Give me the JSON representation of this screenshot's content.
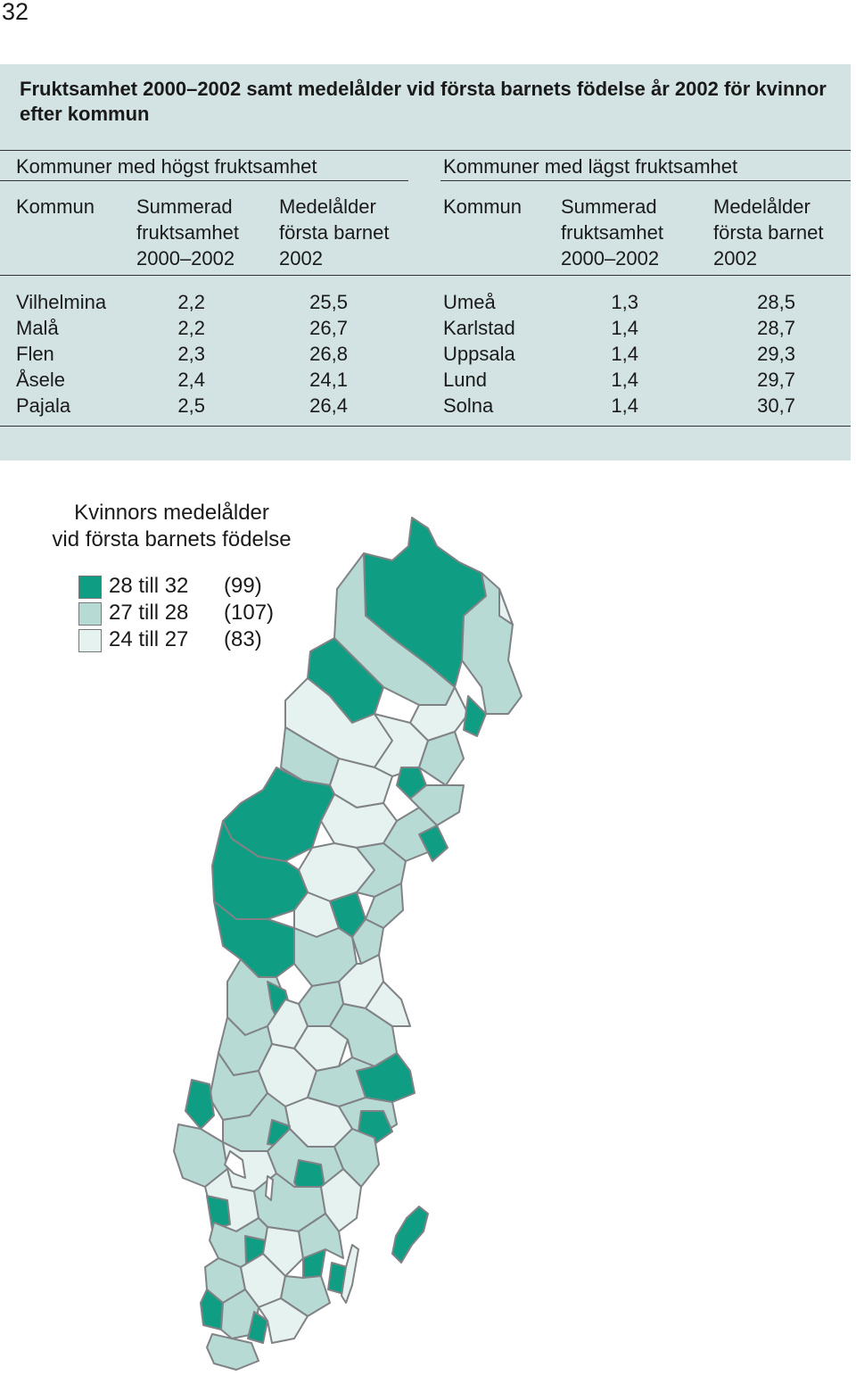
{
  "page_number": "32",
  "box": {
    "title": "Fruktsamhet 2000–2002 samt medelålder vid första barnets födelse år 2002 för kvinnor efter kommun",
    "left_heading": "Kommuner med högst fruktsamhet",
    "right_heading": "Kommuner med lägst fruktsamhet",
    "columns": {
      "kommun": "Kommun",
      "fruktsamhet": [
        "Summerad",
        "fruktsamhet",
        "2000–2002"
      ],
      "medelalder": [
        "Medelålder",
        "första barnet",
        "2002"
      ]
    },
    "highest": [
      {
        "kommun": "Vilhelmina",
        "fruktsamhet": "2,2",
        "medelalder": "25,5"
      },
      {
        "kommun": "Malå",
        "fruktsamhet": "2,2",
        "medelalder": "26,7"
      },
      {
        "kommun": "Flen",
        "fruktsamhet": "2,3",
        "medelalder": "26,8"
      },
      {
        "kommun": "Åsele",
        "fruktsamhet": "2,4",
        "medelalder": "24,1"
      },
      {
        "kommun": "Pajala",
        "fruktsamhet": "2,5",
        "medelalder": "26,4"
      }
    ],
    "lowest": [
      {
        "kommun": "Umeå",
        "fruktsamhet": "1,3",
        "medelalder": "28,5"
      },
      {
        "kommun": "Karlstad",
        "fruktsamhet": "1,4",
        "medelalder": "28,7"
      },
      {
        "kommun": "Uppsala",
        "fruktsamhet": "1,4",
        "medelalder": "29,3"
      },
      {
        "kommun": "Lund",
        "fruktsamhet": "1,4",
        "medelalder": "29,7"
      },
      {
        "kommun": "Solna",
        "fruktsamhet": "1,4",
        "medelalder": "30,7"
      }
    ]
  },
  "map": {
    "legend_title": [
      "Kvinnors medelålder",
      "vid första barnets födelse"
    ],
    "legend": [
      {
        "label": "28 till 32",
        "count": "(99)",
        "color": "#0f9e84"
      },
      {
        "label": "27 till 28",
        "count": "(107)",
        "color": "#b7dad5"
      },
      {
        "label": "24 till 27",
        "count": "(83)",
        "color": "#e6f2ef"
      }
    ],
    "border_color": "#808285"
  }
}
